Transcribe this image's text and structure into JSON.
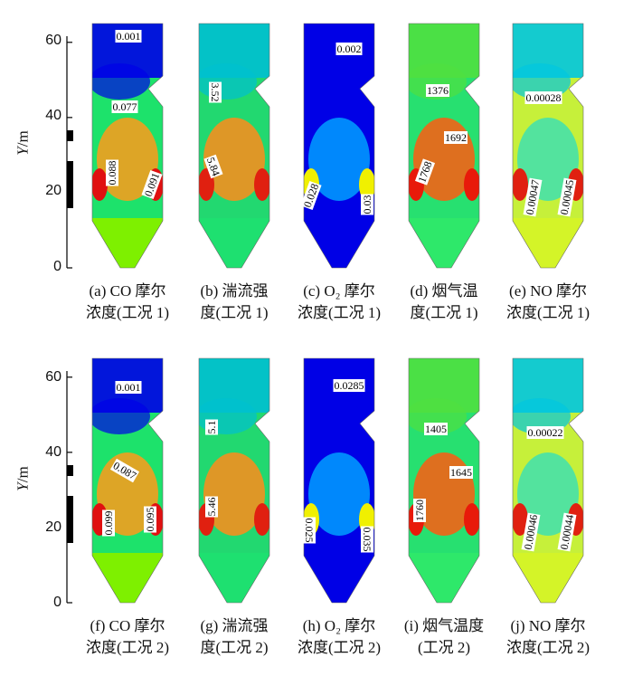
{
  "y_axis": {
    "label_var": "Y",
    "label_unit": "/m",
    "ticks": [
      "0",
      "20",
      "40",
      "60"
    ]
  },
  "panels": [
    {
      "id": "a",
      "caption_line1": "(a) CO 摩尔",
      "caption_line2": "浓度(工况 1)",
      "field": "co",
      "labels": [
        {
          "text": "0.001"
        },
        {
          "text": "0.077"
        },
        {
          "text": "0.088"
        },
        {
          "text": "0.091"
        }
      ]
    },
    {
      "id": "b",
      "caption_line1": "(b) 湍流强",
      "caption_line2": "度(工况 1)",
      "field": "tke",
      "labels": [
        {
          "text": "3.52"
        },
        {
          "text": "5.84"
        }
      ]
    },
    {
      "id": "c",
      "caption_line1": "(c) O₂ 摩尔",
      "caption_line2": "浓度(工况 1)",
      "field": "o2",
      "labels": [
        {
          "text": "0.002"
        },
        {
          "text": "0.028"
        },
        {
          "text": "0.03"
        }
      ]
    },
    {
      "id": "d",
      "caption_line1": "(d) 烟气温",
      "caption_line2": "度(工况 1)",
      "field": "temp",
      "labels": [
        {
          "text": "1376"
        },
        {
          "text": "1692"
        },
        {
          "text": "1768"
        }
      ]
    },
    {
      "id": "e",
      "caption_line1": "(e) NO 摩尔",
      "caption_line2": "浓度(工况 1)",
      "field": "no",
      "labels": [
        {
          "text": "0.00028"
        },
        {
          "text": "0.00047"
        },
        {
          "text": "0.00045"
        }
      ]
    },
    {
      "id": "f",
      "caption_line1": "(f) CO 摩尔",
      "caption_line2": "浓度(工况 2)",
      "field": "co",
      "labels": [
        {
          "text": "0.001"
        },
        {
          "text": "0.087"
        },
        {
          "text": "0.099"
        },
        {
          "text": "0.095"
        }
      ]
    },
    {
      "id": "g",
      "caption_line1": "(g) 湍流强",
      "caption_line2": "度(工况 2)",
      "field": "tke",
      "labels": [
        {
          "text": "5.1"
        },
        {
          "text": "5.46"
        }
      ]
    },
    {
      "id": "h",
      "caption_line1": "(h) O₂ 摩尔",
      "caption_line2": "浓度(工况 2)",
      "field": "o2",
      "labels": [
        {
          "text": "0.0285"
        },
        {
          "text": "0.025"
        },
        {
          "text": "0.035"
        }
      ]
    },
    {
      "id": "i",
      "caption_line1": "(i) 烟气温度",
      "caption_line2": "(工况 2)",
      "field": "temp",
      "labels": [
        {
          "text": "1405"
        },
        {
          "text": "1645"
        },
        {
          "text": "1760"
        }
      ]
    },
    {
      "id": "j",
      "caption_line1": "(j) NO 摩尔",
      "caption_line2": "浓度(工况 2)",
      "field": "no",
      "labels": [
        {
          "text": "0.00022"
        },
        {
          "text": "0.00046"
        },
        {
          "text": "0.00044"
        }
      ]
    }
  ]
}
